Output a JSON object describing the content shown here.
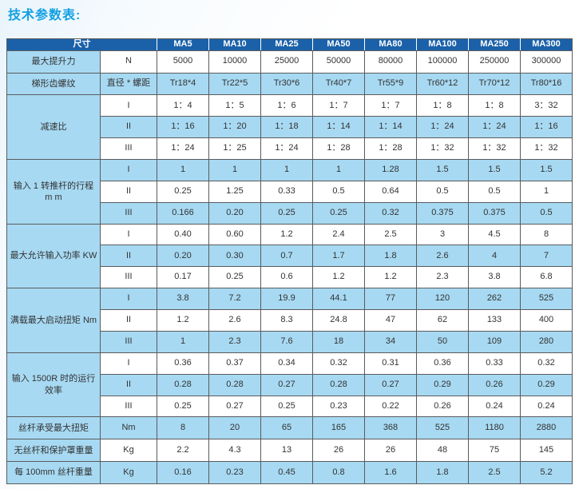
{
  "title": "技术参数表:",
  "colors": {
    "title_blue": "#12a0e3",
    "header_blue": "#1b61a9",
    "row_light_blue": "#a7d9f2",
    "border_gray": "#5a5b5d"
  },
  "table": {
    "header": {
      "dim_label": "尺寸",
      "models": [
        "MA5",
        "MA10",
        "MA25",
        "MA50",
        "MA80",
        "MA100",
        "MA250",
        "MA300"
      ]
    },
    "groups": [
      {
        "label": "最大提升力",
        "rows": [
          {
            "unit": "N",
            "values": [
              "5000",
              "10000",
              "25000",
              "50000",
              "80000",
              "100000",
              "250000",
              "300000"
            ]
          }
        ]
      },
      {
        "label": "梯形齿螺纹",
        "rows": [
          {
            "unit": "直径 * 螺距",
            "values": [
              "Tr18*4",
              "Tr22*5",
              "Tr30*6",
              "Tr40*7",
              "Tr55*9",
              "Tr60*12",
              "Tr70*12",
              "Tr80*16"
            ]
          }
        ]
      },
      {
        "label": "减速比",
        "rows": [
          {
            "unit": "I",
            "values": [
              "1：4",
              "1：5",
              "1：6",
              "1：7",
              "1：7",
              "1：8",
              "1：8",
              "3：32"
            ]
          },
          {
            "unit": "II",
            "values": [
              "1：16",
              "1：20",
              "1：18",
              "1：14",
              "1：14",
              "1：24",
              "1：24",
              "1：16"
            ]
          },
          {
            "unit": "III",
            "values": [
              "1：24",
              "1：25",
              "1：24",
              "1：28",
              "1：28",
              "1：32",
              "1：32",
              "1：32"
            ]
          }
        ]
      },
      {
        "label": "输入 1 转推杆的行程",
        "label2": "m m",
        "rows": [
          {
            "unit": "I",
            "values": [
              "1",
              "1",
              "1",
              "1",
              "1.28",
              "1.5",
              "1.5",
              "1.5"
            ]
          },
          {
            "unit": "II",
            "values": [
              "0.25",
              "1.25",
              "0.33",
              "0.5",
              "0.64",
              "0.5",
              "0.5",
              "1"
            ]
          },
          {
            "unit": "III",
            "values": [
              "0.166",
              "0.20",
              "0.25",
              "0.25",
              "0.32",
              "0.375",
              "0.375",
              "0.5"
            ]
          }
        ]
      },
      {
        "label": "最大允许输入功率 KW",
        "rows": [
          {
            "unit": "I",
            "values": [
              "0.40",
              "0.60",
              "1.2",
              "2.4",
              "2.5",
              "3",
              "4.5",
              "8"
            ]
          },
          {
            "unit": "II",
            "values": [
              "0.20",
              "0.30",
              "0.7",
              "1.7",
              "1.8",
              "2.6",
              "4",
              "7"
            ]
          },
          {
            "unit": "III",
            "values": [
              "0.17",
              "0.25",
              "0.6",
              "1.2",
              "1.2",
              "2.3",
              "3.8",
              "6.8"
            ]
          }
        ]
      },
      {
        "label": "满载最大启动扭矩 Nm",
        "rows": [
          {
            "unit": "I",
            "values": [
              "3.8",
              "7.2",
              "19.9",
              "44.1",
              "77",
              "120",
              "262",
              "525"
            ]
          },
          {
            "unit": "II",
            "values": [
              "1.2",
              "2.6",
              "8.3",
              "24.8",
              "47",
              "62",
              "133",
              "400"
            ]
          },
          {
            "unit": "III",
            "values": [
              "1",
              "2.3",
              "7.6",
              "18",
              "34",
              "50",
              "109",
              "280"
            ]
          }
        ]
      },
      {
        "label": "输入 1500R 时的运行",
        "label2": "效率",
        "rows": [
          {
            "unit": "I",
            "values": [
              "0.36",
              "0.37",
              "0.34",
              "0.32",
              "0.31",
              "0.36",
              "0.33",
              "0.32"
            ]
          },
          {
            "unit": "II",
            "values": [
              "0.28",
              "0.28",
              "0.27",
              "0.28",
              "0.27",
              "0.29",
              "0.26",
              "0.29"
            ]
          },
          {
            "unit": "III",
            "values": [
              "0.25",
              "0.27",
              "0.25",
              "0.23",
              "0.22",
              "0.26",
              "0.24",
              "0.24"
            ]
          }
        ]
      },
      {
        "label": "丝杆承受最大扭矩",
        "rows": [
          {
            "unit": "Nm",
            "values": [
              "8",
              "20",
              "65",
              "165",
              "368",
              "525",
              "1180",
              "2880"
            ]
          }
        ]
      },
      {
        "label": "无丝杆和保护罩重量",
        "rows": [
          {
            "unit": "Kg",
            "values": [
              "2.2",
              "4.3",
              "13",
              "26",
              "26",
              "48",
              "75",
              "145"
            ]
          }
        ]
      },
      {
        "label": "每 100mm 丝杆重量",
        "rows": [
          {
            "unit": "Kg",
            "values": [
              "0.16",
              "0.23",
              "0.45",
              "0.8",
              "1.6",
              "1.8",
              "2.5",
              "5.2"
            ]
          }
        ]
      }
    ]
  }
}
